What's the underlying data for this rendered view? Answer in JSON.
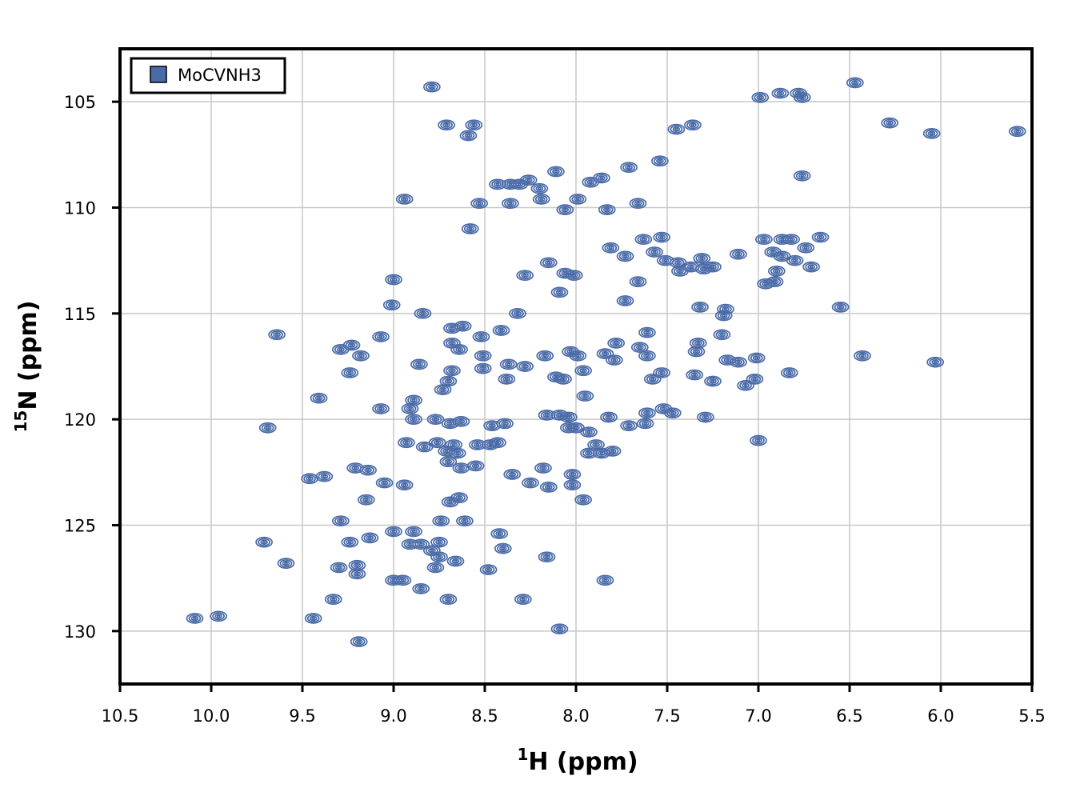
{
  "chart_data": {
    "type": "scatter",
    "subtype": "2D NMR HSQC contour spectrum",
    "x_axis": {
      "label_sup": "1",
      "label_main": "H (ppm)",
      "range": [
        10.5,
        5.5
      ],
      "reversed": true,
      "ticks": [
        10.5,
        10.0,
        9.5,
        9.0,
        8.5,
        8.0,
        7.5,
        7.0,
        6.5,
        6.0,
        5.5
      ],
      "tick_labels": [
        "10.5",
        "10.0",
        "9.5",
        "9.0",
        "8.5",
        "8.0",
        "7.5",
        "7.0",
        "6.5",
        "6.0",
        "5.5"
      ]
    },
    "y_axis": {
      "label_sup": "15",
      "label_main": "N (ppm)",
      "range": [
        102.5,
        132.5
      ],
      "reversed": true,
      "ticks": [
        105,
        110,
        115,
        120,
        125,
        130
      ],
      "tick_labels": [
        "105",
        "110",
        "115",
        "120",
        "125",
        "130"
      ]
    },
    "grid": true,
    "legend": {
      "position": "top-left",
      "entries": [
        "MoCVNH3"
      ]
    },
    "series": [
      {
        "name": "MoCVNH3",
        "color": "#4a6ba8",
        "peaks": [
          [
            8.79,
            104.3
          ],
          [
            8.71,
            106.1
          ],
          [
            8.56,
            106.1
          ],
          [
            8.59,
            106.6
          ],
          [
            7.45,
            106.3
          ],
          [
            7.36,
            106.1
          ],
          [
            6.28,
            106.0
          ],
          [
            6.05,
            106.5
          ],
          [
            5.58,
            106.4
          ],
          [
            6.47,
            104.1
          ],
          [
            8.11,
            108.3
          ],
          [
            7.71,
            108.1
          ],
          [
            7.54,
            107.8
          ],
          [
            6.76,
            108.5
          ],
          [
            7.86,
            108.6
          ],
          [
            7.92,
            108.8
          ],
          [
            8.94,
            109.6
          ],
          [
            8.53,
            109.8
          ],
          [
            8.36,
            109.8
          ],
          [
            8.19,
            109.6
          ],
          [
            8.06,
            110.1
          ],
          [
            7.99,
            109.6
          ],
          [
            7.83,
            110.1
          ],
          [
            7.66,
            109.8
          ],
          [
            8.58,
            111.0
          ],
          [
            8.28,
            113.2
          ],
          [
            8.15,
            112.6
          ],
          [
            8.06,
            113.1
          ],
          [
            8.01,
            113.2
          ],
          [
            7.66,
            113.5
          ],
          [
            8.09,
            114.0
          ],
          [
            7.73,
            114.4
          ],
          [
            6.66,
            111.4
          ],
          [
            6.71,
            112.8
          ],
          [
            6.55,
            114.7
          ],
          [
            7.32,
            114.7
          ],
          [
            7.18,
            114.8
          ],
          [
            7.19,
            115.1
          ],
          [
            6.96,
            113.6
          ],
          [
            6.91,
            113.5
          ],
          [
            9.0,
            113.4
          ],
          [
            9.01,
            114.6
          ],
          [
            8.84,
            115.0
          ],
          [
            8.32,
            115.0
          ],
          [
            9.64,
            116.0
          ],
          [
            9.07,
            116.1
          ],
          [
            8.52,
            116.1
          ],
          [
            8.41,
            115.8
          ],
          [
            8.68,
            115.7
          ],
          [
            8.62,
            115.6
          ],
          [
            9.29,
            116.7
          ],
          [
            9.23,
            116.5
          ],
          [
            9.18,
            117.0
          ],
          [
            8.68,
            116.4
          ],
          [
            8.64,
            116.7
          ],
          [
            8.51,
            117.0
          ],
          [
            8.37,
            117.4
          ],
          [
            8.28,
            117.5
          ],
          [
            8.17,
            117.0
          ],
          [
            8.03,
            116.8
          ],
          [
            7.99,
            117.0
          ],
          [
            7.78,
            116.4
          ],
          [
            7.84,
            116.9
          ],
          [
            7.79,
            117.2
          ],
          [
            7.65,
            116.6
          ],
          [
            7.61,
            117.0
          ],
          [
            7.61,
            115.9
          ],
          [
            7.34,
            116.8
          ],
          [
            7.33,
            116.4
          ],
          [
            7.2,
            116.0
          ],
          [
            7.17,
            117.2
          ],
          [
            7.11,
            117.3
          ],
          [
            7.01,
            117.1
          ],
          [
            6.43,
            117.0
          ],
          [
            6.03,
            117.3
          ],
          [
            9.24,
            117.8
          ],
          [
            8.86,
            117.4
          ],
          [
            8.68,
            117.7
          ],
          [
            8.7,
            118.2
          ],
          [
            8.73,
            118.6
          ],
          [
            8.51,
            117.6
          ],
          [
            8.38,
            118.1
          ],
          [
            8.11,
            118.0
          ],
          [
            8.07,
            118.1
          ],
          [
            7.96,
            117.7
          ],
          [
            7.58,
            118.1
          ],
          [
            7.53,
            117.8
          ],
          [
            7.35,
            117.9
          ],
          [
            7.25,
            118.2
          ],
          [
            7.02,
            118.1
          ],
          [
            7.07,
            118.4
          ],
          [
            6.83,
            117.8
          ],
          [
            9.41,
            119.0
          ],
          [
            8.89,
            119.1
          ],
          [
            9.07,
            119.5
          ],
          [
            8.91,
            119.5
          ],
          [
            8.89,
            120.0
          ],
          [
            8.77,
            120.0
          ],
          [
            8.69,
            120.2
          ],
          [
            8.63,
            120.1
          ],
          [
            8.46,
            120.3
          ],
          [
            8.39,
            120.2
          ],
          [
            8.16,
            119.8
          ],
          [
            8.09,
            119.8
          ],
          [
            8.04,
            119.9
          ],
          [
            7.95,
            118.9
          ],
          [
            9.69,
            120.4
          ],
          [
            8.93,
            121.1
          ],
          [
            8.83,
            121.3
          ],
          [
            8.76,
            121.1
          ],
          [
            8.67,
            121.2
          ],
          [
            8.71,
            121.5
          ],
          [
            8.65,
            121.6
          ],
          [
            8.54,
            121.2
          ],
          [
            8.47,
            121.2
          ],
          [
            8.43,
            121.1
          ],
          [
            8.04,
            120.4
          ],
          [
            8.0,
            120.4
          ],
          [
            7.93,
            120.6
          ],
          [
            7.82,
            119.9
          ],
          [
            7.71,
            120.3
          ],
          [
            7.62,
            120.2
          ],
          [
            7.61,
            119.7
          ],
          [
            7.52,
            119.5
          ],
          [
            7.47,
            119.7
          ],
          [
            7.29,
            119.9
          ],
          [
            7.93,
            121.6
          ],
          [
            7.89,
            121.2
          ],
          [
            7.86,
            121.6
          ],
          [
            7.8,
            121.5
          ],
          [
            7.0,
            121.0
          ],
          [
            9.46,
            122.8
          ],
          [
            9.38,
            122.7
          ],
          [
            9.21,
            122.3
          ],
          [
            9.14,
            122.4
          ],
          [
            9.05,
            123.0
          ],
          [
            8.94,
            123.1
          ],
          [
            8.7,
            122.0
          ],
          [
            8.63,
            122.3
          ],
          [
            8.55,
            122.2
          ],
          [
            8.35,
            122.6
          ],
          [
            8.18,
            122.3
          ],
          [
            8.02,
            122.6
          ],
          [
            8.02,
            123.1
          ],
          [
            8.25,
            123.0
          ],
          [
            8.15,
            123.2
          ],
          [
            9.15,
            123.8
          ],
          [
            8.69,
            123.9
          ],
          [
            8.64,
            123.7
          ],
          [
            8.61,
            124.8
          ],
          [
            8.74,
            124.8
          ],
          [
            7.96,
            123.8
          ],
          [
            9.29,
            124.8
          ],
          [
            9.71,
            125.8
          ],
          [
            9.24,
            125.8
          ],
          [
            9.13,
            125.6
          ],
          [
            9.0,
            125.3
          ],
          [
            8.89,
            125.3
          ],
          [
            8.91,
            125.9
          ],
          [
            8.85,
            125.9
          ],
          [
            8.75,
            125.8
          ],
          [
            8.79,
            126.2
          ],
          [
            8.75,
            126.5
          ],
          [
            8.42,
            125.4
          ],
          [
            8.4,
            126.1
          ],
          [
            9.59,
            126.8
          ],
          [
            9.3,
            127.0
          ],
          [
            9.2,
            126.9
          ],
          [
            9.2,
            127.3
          ],
          [
            8.77,
            127.0
          ],
          [
            8.66,
            126.7
          ],
          [
            8.48,
            127.1
          ],
          [
            8.16,
            126.5
          ],
          [
            7.84,
            127.6
          ],
          [
            9.0,
            127.6
          ],
          [
            8.95,
            127.6
          ],
          [
            8.85,
            128.0
          ],
          [
            8.7,
            128.5
          ],
          [
            9.33,
            128.5
          ],
          [
            8.29,
            128.5
          ],
          [
            9.44,
            129.4
          ],
          [
            10.09,
            129.4
          ],
          [
            9.96,
            129.3
          ],
          [
            8.09,
            129.9
          ],
          [
            9.19,
            130.5
          ],
          [
            8.43,
            108.9
          ],
          [
            8.36,
            108.9
          ],
          [
            8.31,
            108.9
          ],
          [
            8.26,
            108.7
          ],
          [
            8.2,
            109.1
          ],
          [
            7.81,
            111.9
          ],
          [
            7.73,
            112.3
          ],
          [
            7.63,
            111.5
          ],
          [
            7.53,
            111.4
          ],
          [
            7.57,
            112.1
          ],
          [
            7.51,
            112.5
          ],
          [
            7.44,
            112.6
          ],
          [
            7.37,
            112.8
          ],
          [
            7.3,
            112.9
          ],
          [
            7.43,
            113.0
          ],
          [
            7.31,
            112.4
          ],
          [
            7.25,
            112.8
          ],
          [
            7.11,
            112.2
          ],
          [
            6.97,
            111.5
          ],
          [
            6.87,
            111.5
          ],
          [
            6.82,
            111.5
          ],
          [
            6.92,
            112.1
          ],
          [
            6.87,
            112.3
          ],
          [
            6.8,
            112.5
          ],
          [
            6.9,
            113.0
          ],
          [
            6.74,
            111.9
          ],
          [
            6.99,
            104.8
          ],
          [
            6.88,
            104.6
          ],
          [
            6.78,
            104.6
          ],
          [
            6.76,
            104.8
          ]
        ]
      }
    ]
  }
}
